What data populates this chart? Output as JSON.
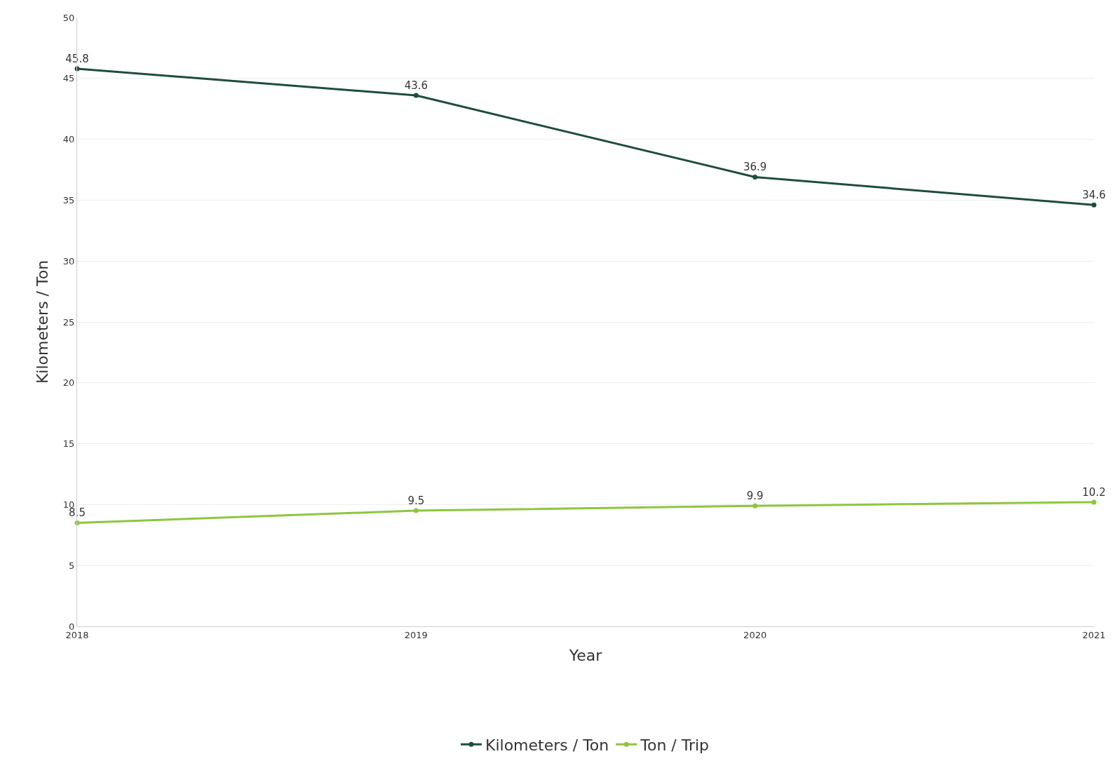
{
  "chart_data": {
    "type": "line",
    "xlabel": "Year",
    "ylabel": "Kilometers / Ton",
    "categories": [
      "2018",
      "2019",
      "2020",
      "2021"
    ],
    "series": [
      {
        "name": "Kilometers / Ton",
        "color": "#1e4d3b",
        "values": [
          45.8,
          43.6,
          36.9,
          34.6
        ]
      },
      {
        "name": "Ton / Trip",
        "color": "#8dc63f",
        "values": [
          8.5,
          9.5,
          9.9,
          10.2
        ]
      }
    ],
    "ylim": [
      0,
      50
    ],
    "yticks": [
      0,
      5,
      10,
      15,
      20,
      25,
      30,
      35,
      40,
      45,
      50
    ],
    "grid": "y",
    "legend": "bottom",
    "marker": "circle",
    "line_style": "solid",
    "data_labels": true
  }
}
